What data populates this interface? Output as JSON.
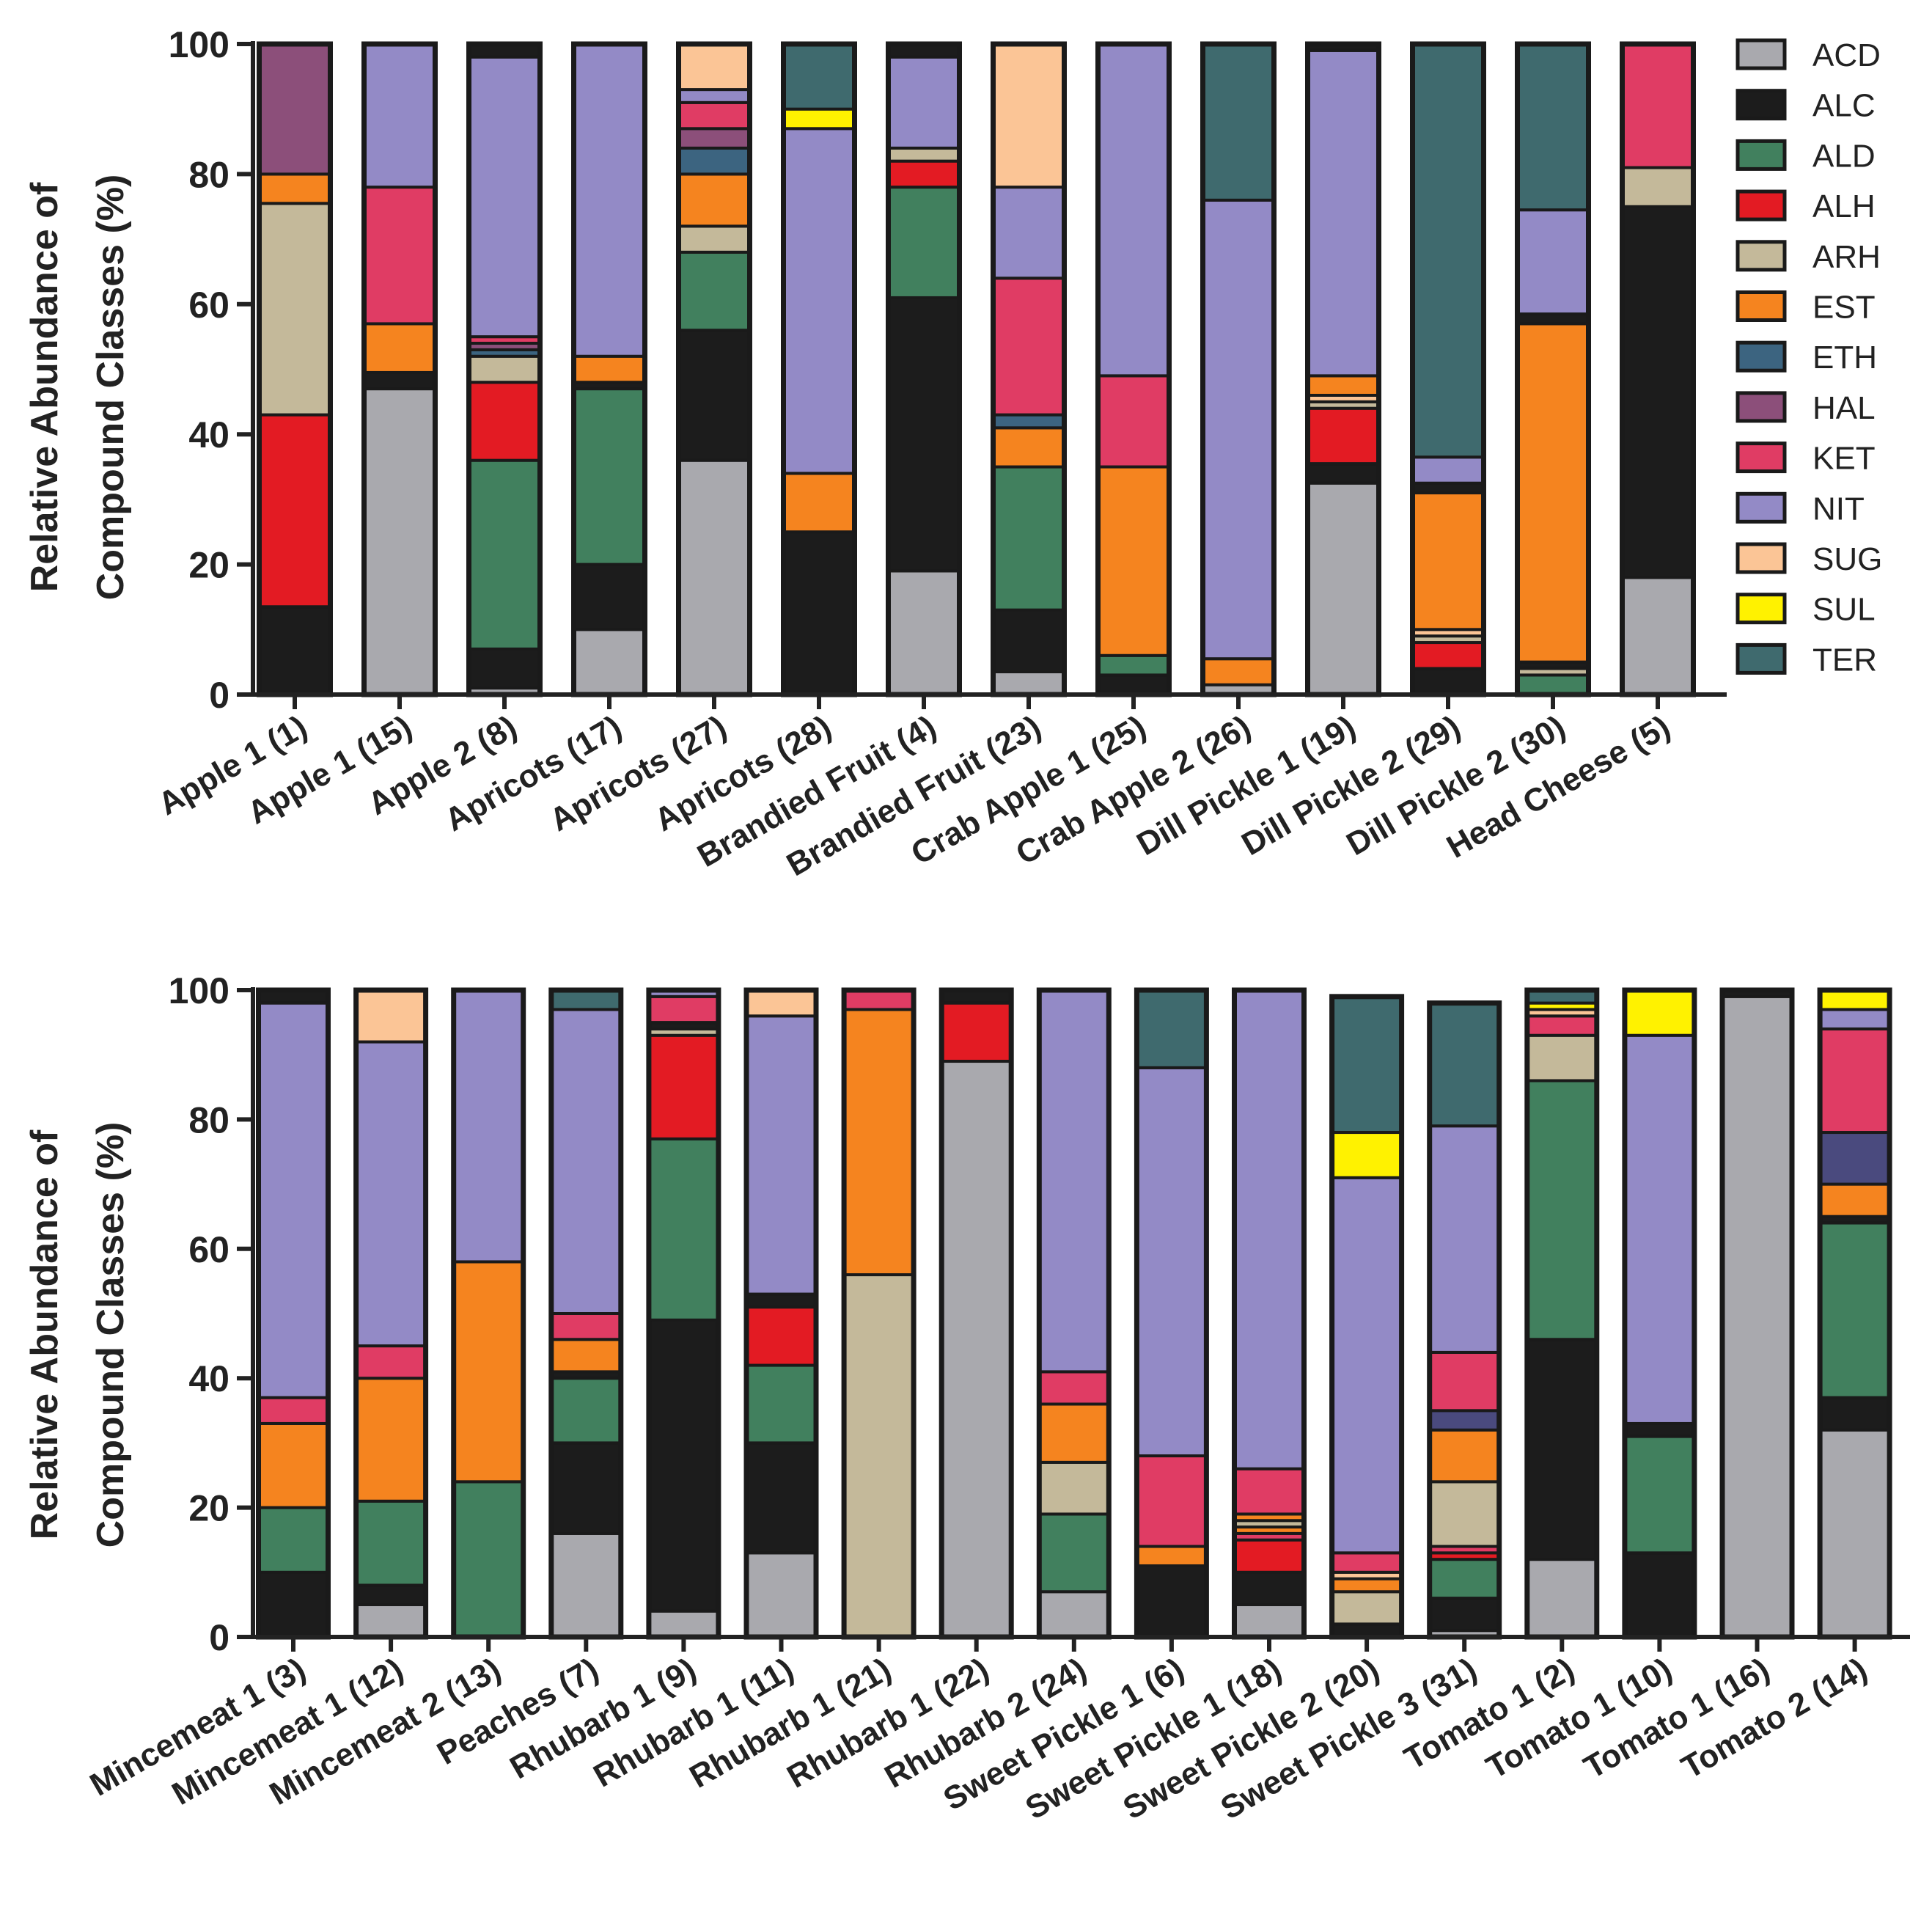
{
  "classes": [
    "ACD",
    "ALC",
    "ALD",
    "ALH",
    "ARH",
    "EST",
    "ETH",
    "HAL",
    "KET",
    "NIT",
    "SUG",
    "SUL",
    "TER"
  ],
  "colors": {
    "ACD": "#a9a9ae",
    "ALC": "#1c1c1c",
    "ALD": "#41805e",
    "ALH": "#e31b23",
    "ARH": "#c4b99a",
    "EST": "#f5841f",
    "ETH": "#3c6480",
    "HAL": "#8c4f7a",
    "KET": "#e03c64",
    "NIT": "#938ac6",
    "SUG": "#fbc596",
    "SUL": "#fff200",
    "TER": "#3f6a6e",
    "UNK": "#4a4a7e"
  },
  "legend": {
    "items": [
      {
        "key": "ACD",
        "label": "ACD"
      },
      {
        "key": "ALC",
        "label": "ALC"
      },
      {
        "key": "ALD",
        "label": "ALD"
      },
      {
        "key": "ALH",
        "label": "ALH"
      },
      {
        "key": "ARH",
        "label": "ARH"
      },
      {
        "key": "EST",
        "label": "EST"
      },
      {
        "key": "ETH",
        "label": "ETH"
      },
      {
        "key": "HAL",
        "label": "HAL"
      },
      {
        "key": "KET",
        "label": "KET"
      },
      {
        "key": "NIT",
        "label": "NIT"
      },
      {
        "key": "SUG",
        "label": "SUG"
      },
      {
        "key": "SUL",
        "label": "SUL"
      },
      {
        "key": "TER",
        "label": "TER"
      }
    ]
  },
  "chart_data": [
    {
      "type": "bar",
      "stacked": true,
      "ylabel": "Relative Abundance of Compound Classes (%)",
      "ylabel_lines": [
        "Relative Abundance of",
        "Compound Classes (%)"
      ],
      "ylim": [
        0,
        100
      ],
      "yticks": [
        0,
        20,
        40,
        60,
        80,
        100
      ],
      "categories": [
        "Apple 1 (1)",
        "Apple 1 (15)",
        "Apple 2 (8)",
        "Apricots (17)",
        "Apricots (27)",
        "Apricots (28)",
        "Brandied Fruit (4)",
        "Brandied Fruit (23)",
        "Crab Apple 1 (25)",
        "Crab Apple 2 (26)",
        "Dill Pickle 1 (19)",
        "Dill Pickle 2 (29)",
        "Dill Pickle 2 (30)",
        "Head Cheese (5)"
      ],
      "stacks": [
        [
          [
            "ALC",
            13.5
          ],
          [
            "ALH",
            29.5
          ],
          [
            "ARH",
            32.5
          ],
          [
            "EST",
            4.5
          ],
          [
            "HAL",
            20
          ]
        ],
        [
          [
            "ACD",
            47
          ],
          [
            "ALC",
            2.5
          ],
          [
            "EST",
            7.5
          ],
          [
            "KET",
            21
          ],
          [
            "NIT",
            22
          ]
        ],
        [
          [
            "ACD",
            1
          ],
          [
            "ALC",
            6
          ],
          [
            "ALD",
            29
          ],
          [
            "ALH",
            12
          ],
          [
            "ARH",
            4
          ],
          [
            "ETH",
            1
          ],
          [
            "HAL",
            1
          ],
          [
            "KET",
            1
          ],
          [
            "NIT",
            43
          ],
          [
            "ALC",
            2
          ]
        ],
        [
          [
            "ACD",
            10
          ],
          [
            "ALC",
            10
          ],
          [
            "ALD",
            27
          ],
          [
            "ALC",
            1
          ],
          [
            "EST",
            4
          ],
          [
            "NIT",
            48
          ]
        ],
        [
          [
            "ACD",
            36
          ],
          [
            "ALC",
            20
          ],
          [
            "ALD",
            12
          ],
          [
            "ARH",
            4
          ],
          [
            "EST",
            8
          ],
          [
            "ETH",
            4
          ],
          [
            "HAL",
            3
          ],
          [
            "KET",
            4
          ],
          [
            "NIT",
            2
          ],
          [
            "SUG",
            7
          ]
        ],
        [
          [
            "ALC",
            25
          ],
          [
            "EST",
            9
          ],
          [
            "NIT",
            53
          ],
          [
            "SUL",
            3
          ],
          [
            "TER",
            10
          ]
        ],
        [
          [
            "ACD",
            19
          ],
          [
            "ALC",
            42
          ],
          [
            "ALD",
            17
          ],
          [
            "ALH",
            4
          ],
          [
            "ARH",
            2
          ],
          [
            "NIT",
            14
          ],
          [
            "ALC",
            2
          ]
        ],
        [
          [
            "ACD",
            3.5
          ],
          [
            "ALC",
            9.5
          ],
          [
            "ALD",
            22
          ],
          [
            "EST",
            6
          ],
          [
            "ETH",
            2
          ],
          [
            "KET",
            21
          ],
          [
            "NIT",
            14
          ],
          [
            "SUG",
            22
          ]
        ],
        [
          [
            "ALC",
            3
          ],
          [
            "ALD",
            3
          ],
          [
            "EST",
            29
          ],
          [
            "KET",
            14
          ],
          [
            "NIT",
            51
          ]
        ],
        [
          [
            "ACD",
            1.5
          ],
          [
            "EST",
            4
          ],
          [
            "NIT",
            70.5
          ],
          [
            "TER",
            24
          ]
        ],
        [
          [
            "ACD",
            32.5
          ],
          [
            "ALC",
            3
          ],
          [
            "ALH",
            8.5
          ],
          [
            "ARH",
            1
          ],
          [
            "SUG",
            1
          ],
          [
            "EST",
            3
          ],
          [
            "NIT",
            50
          ],
          [
            "ALC",
            1
          ]
        ],
        [
          [
            "ALC",
            4
          ],
          [
            "ALH",
            4
          ],
          [
            "ARH",
            1
          ],
          [
            "SUG",
            1
          ],
          [
            "EST",
            21
          ],
          [
            "ALC",
            1.5
          ],
          [
            "NIT",
            4
          ],
          [
            "TER",
            63.5
          ]
        ],
        [
          [
            "ALD",
            3
          ],
          [
            "ARH",
            1
          ],
          [
            "ALC",
            1
          ],
          [
            "EST",
            52
          ],
          [
            "ALC",
            1.5
          ],
          [
            "NIT",
            16
          ],
          [
            "TER",
            25.5
          ]
        ],
        [
          [
            "ACD",
            18
          ],
          [
            "ALC",
            57
          ],
          [
            "ARH",
            6
          ],
          [
            "KET",
            19
          ]
        ]
      ]
    },
    {
      "type": "bar",
      "stacked": true,
      "ylabel": "Relative Abundance of Compound Classes (%)",
      "ylabel_lines": [
        "Relative Abundance of",
        "Compound Classes (%)"
      ],
      "ylim": [
        0,
        100
      ],
      "yticks": [
        0,
        20,
        40,
        60,
        80,
        100
      ],
      "categories": [
        "Mincemeat 1 (3)",
        "Mincemeat 1 (12)",
        "Mincemeat 2 (13)",
        "Peaches (7)",
        "Rhubarb 1 (9)",
        "Rhubarb 1 (11)",
        "Rhubarb 1 (21)",
        "Rhubarb 1 (22)",
        "Rhubarb 2 (24)",
        "Sweet Pickle 1 (6)",
        "Sweet Pickle 1 (18)",
        "Sweet Pickle 2 (20)",
        "Sweet Pickle 3 (31)",
        "Tomato 1 (2)",
        "Tomato 1 (10)",
        "Tomato 1 (16)",
        "Tomato 2 (14)"
      ],
      "stacks": [
        [
          [
            "ALC",
            10
          ],
          [
            "ALD",
            10
          ],
          [
            "EST",
            13
          ],
          [
            "KET",
            4
          ],
          [
            "NIT",
            61
          ],
          [
            "ALC",
            2
          ]
        ],
        [
          [
            "ACD",
            5
          ],
          [
            "ALC",
            3
          ],
          [
            "ALD",
            13
          ],
          [
            "EST",
            19
          ],
          [
            "KET",
            5
          ],
          [
            "NIT",
            47
          ],
          [
            "SUG",
            8
          ]
        ],
        [
          [
            "ALD",
            24
          ],
          [
            "EST",
            34
          ],
          [
            "NIT",
            42
          ]
        ],
        [
          [
            "ACD",
            16
          ],
          [
            "ALC",
            14
          ],
          [
            "ALD",
            10
          ],
          [
            "ALC",
            1
          ],
          [
            "EST",
            5
          ],
          [
            "KET",
            4
          ],
          [
            "NIT",
            47
          ],
          [
            "TER",
            3
          ]
        ],
        [
          [
            "ACD",
            4
          ],
          [
            "ALC",
            45
          ],
          [
            "ALD",
            28
          ],
          [
            "ALH",
            16
          ],
          [
            "ARH",
            1
          ],
          [
            "ALC",
            1
          ],
          [
            "KET",
            4
          ],
          [
            "NIT",
            1
          ]
        ],
        [
          [
            "ACD",
            13
          ],
          [
            "ALC",
            17
          ],
          [
            "ALD",
            12
          ],
          [
            "ALH",
            9
          ],
          [
            "ALC",
            2
          ],
          [
            "NIT",
            43
          ],
          [
            "SUG",
            4
          ]
        ],
        [
          [
            "ARH",
            56
          ],
          [
            "EST",
            41
          ],
          [
            "KET",
            3
          ]
        ],
        [
          [
            "ACD",
            89
          ],
          [
            "ALH",
            9
          ],
          [
            "ALC",
            2
          ]
        ],
        [
          [
            "ACD",
            7
          ],
          [
            "ALD",
            12
          ],
          [
            "ARH",
            8
          ],
          [
            "EST",
            9
          ],
          [
            "KET",
            5
          ],
          [
            "NIT",
            59
          ]
        ],
        [
          [
            "ALC",
            11
          ],
          [
            "EST",
            3
          ],
          [
            "KET",
            14
          ],
          [
            "NIT",
            60
          ],
          [
            "TER",
            12
          ]
        ],
        [
          [
            "ACD",
            5
          ],
          [
            "ALC",
            5
          ],
          [
            "ALH",
            5
          ],
          [
            "KET",
            1
          ],
          [
            "EST",
            1
          ],
          [
            "ARH",
            1
          ],
          [
            "EST",
            1
          ],
          [
            "KET",
            7
          ],
          [
            "NIT",
            74
          ]
        ],
        [
          [
            "ALC",
            2
          ],
          [
            "ARH",
            5
          ],
          [
            "EST",
            2
          ],
          [
            "SUG",
            1
          ],
          [
            "KET",
            3
          ],
          [
            "NIT",
            58
          ],
          [
            "SUL",
            7
          ],
          [
            "TER",
            21
          ]
        ],
        [
          [
            "ACD",
            1
          ],
          [
            "ALC",
            5
          ],
          [
            "ALD",
            6
          ],
          [
            "ALH",
            1
          ],
          [
            "KET",
            1
          ],
          [
            "ARH",
            10
          ],
          [
            "EST",
            8
          ],
          [
            "UNK",
            3
          ],
          [
            "KET",
            9
          ],
          [
            "NIT",
            35
          ],
          [
            "TER",
            19
          ]
        ],
        [
          [
            "ACD",
            12
          ],
          [
            "ALC",
            34
          ],
          [
            "ALD",
            40
          ],
          [
            "ARH",
            7
          ],
          [
            "KET",
            3
          ],
          [
            "SUG",
            1
          ],
          [
            "SUL",
            1
          ],
          [
            "TER",
            2
          ]
        ],
        [
          [
            "ALC",
            13
          ],
          [
            "ALD",
            18
          ],
          [
            "ALC",
            2
          ],
          [
            "NIT",
            60
          ],
          [
            "SUL",
            7
          ]
        ],
        [
          [
            "ACD",
            99
          ],
          [
            "ALC",
            1
          ]
        ],
        [
          [
            "ACD",
            32
          ],
          [
            "ALC",
            5
          ],
          [
            "ALD",
            27
          ],
          [
            "ALC",
            1
          ],
          [
            "EST",
            5
          ],
          [
            "UNK",
            8
          ],
          [
            "KET",
            16
          ],
          [
            "NIT",
            3
          ],
          [
            "SUL",
            3
          ]
        ]
      ]
    }
  ]
}
